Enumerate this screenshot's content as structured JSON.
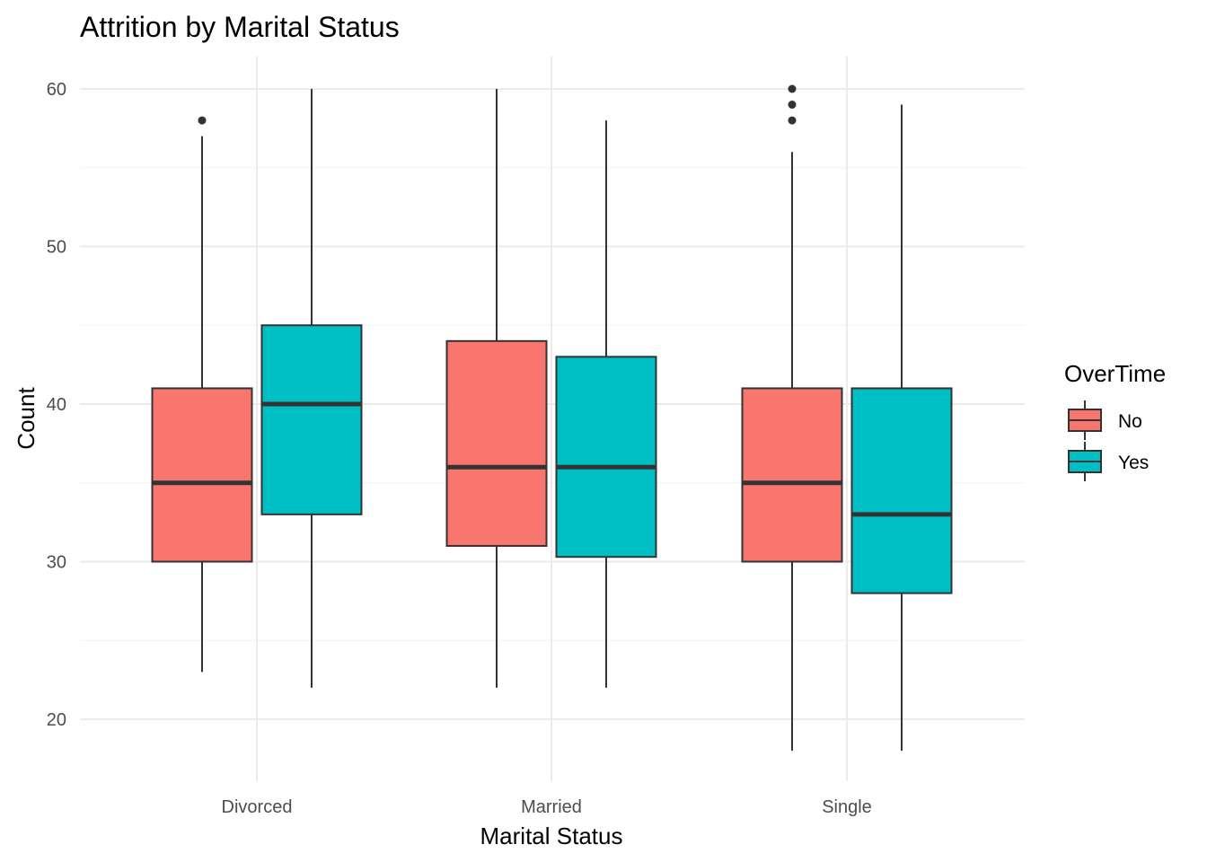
{
  "chart_data": {
    "type": "boxplot",
    "title": "Attrition by Marital Status",
    "xlabel": "Marital Status",
    "ylabel": "Count",
    "ylim": [
      16.2,
      62.1
    ],
    "yticks": [
      20,
      30,
      40,
      50,
      60
    ],
    "grid": true,
    "legend": {
      "title": "OverTime",
      "position": "right"
    },
    "categories": [
      "Divorced",
      "Married",
      "Single"
    ],
    "series": [
      {
        "name": "No",
        "color": "#F8766D",
        "boxes": [
          {
            "min": 23,
            "q1": 30,
            "median": 35,
            "q3": 41,
            "max": 57,
            "outliers": [
              58
            ]
          },
          {
            "min": 22,
            "q1": 31,
            "median": 36,
            "q3": 44,
            "max": 60,
            "outliers": []
          },
          {
            "min": 18,
            "q1": 30,
            "median": 35,
            "q3": 41,
            "max": 56,
            "outliers": [
              58,
              59,
              60
            ]
          }
        ]
      },
      {
        "name": "Yes",
        "color": "#00BFC4",
        "boxes": [
          {
            "min": 22,
            "q1": 33,
            "median": 40,
            "q3": 45,
            "max": 60,
            "outliers": []
          },
          {
            "min": 22,
            "q1": 30.3,
            "median": 36,
            "q3": 43,
            "max": 58,
            "outliers": []
          },
          {
            "min": 18,
            "q1": 28,
            "median": 33,
            "q3": 41,
            "max": 59,
            "outliers": []
          }
        ]
      }
    ]
  }
}
